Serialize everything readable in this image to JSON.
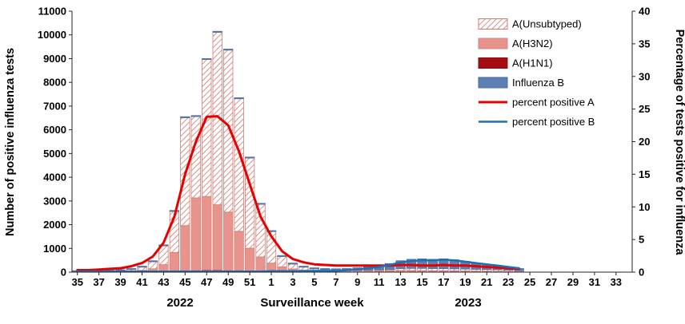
{
  "chart_data": {
    "type": "bar",
    "subtype": "stacked-bars-with-percent-lines",
    "title": "",
    "x_axis": {
      "label": "Surveillance week",
      "year_left": "2022",
      "year_right": "2023",
      "tick_every": 2
    },
    "y_left": {
      "label": "Number of positive influenza tests",
      "min": 0,
      "max": 11000,
      "step": 1000
    },
    "y_right": {
      "label": "Percentage of tests positive for influenza",
      "min": 0,
      "max": 40,
      "step": 5
    },
    "weeks": [
      35,
      36,
      37,
      38,
      39,
      40,
      41,
      42,
      43,
      44,
      45,
      46,
      47,
      48,
      49,
      50,
      51,
      52,
      1,
      2,
      3,
      4,
      5,
      6,
      7,
      8,
      9,
      10,
      11,
      12,
      13,
      14,
      15,
      16,
      17,
      18,
      19,
      20,
      21,
      22,
      23,
      24,
      25,
      26,
      27,
      28,
      29,
      30,
      31,
      32,
      33
    ],
    "series": [
      {
        "key": "a-h1n1",
        "name": "A(H1N1)",
        "fill": "#a40d11",
        "stroke": "#8e0b0e",
        "values": [
          0,
          0,
          0,
          0,
          5,
          5,
          5,
          10,
          15,
          30,
          60,
          80,
          90,
          90,
          80,
          70,
          60,
          40,
          30,
          20,
          15,
          10,
          10,
          10,
          10,
          10,
          10,
          10,
          10,
          10,
          10,
          10,
          10,
          10,
          10,
          10,
          10,
          8,
          8,
          6,
          5,
          5,
          0,
          0,
          0,
          0,
          0,
          0,
          0,
          0,
          0
        ]
      },
      {
        "key": "a-h3n2",
        "name": "A(H3N2)",
        "fill": "#e8938c",
        "stroke": "#d9837c",
        "values": [
          15,
          15,
          18,
          20,
          25,
          40,
          70,
          130,
          300,
          800,
          1900,
          3050,
          3100,
          2750,
          2450,
          1650,
          950,
          600,
          350,
          200,
          120,
          80,
          60,
          50,
          45,
          45,
          50,
          50,
          55,
          55,
          60,
          60,
          55,
          50,
          50,
          45,
          40,
          35,
          30,
          25,
          20,
          15,
          0,
          0,
          0,
          0,
          0,
          0,
          0,
          0,
          0
        ]
      },
      {
        "key": "a-unsubtyped",
        "name": "A(Unsubtyped)",
        "fill": "hatch",
        "stroke": "#cf7d75",
        "hatch_color": "#d4837b",
        "values": [
          10,
          10,
          12,
          20,
          30,
          65,
          135,
          300,
          795,
          1730,
          4550,
          3430,
          5770,
          7270,
          6830,
          5590,
          3800,
          2220,
          1330,
          440,
          205,
          120,
          70,
          50,
          40,
          35,
          30,
          30,
          35,
          45,
          80,
          90,
          95,
          90,
          90,
          85,
          80,
          77,
          72,
          69,
          55,
          40,
          0,
          0,
          0,
          0,
          0,
          0,
          0,
          0,
          0
        ]
      },
      {
        "key": "influenza-b",
        "name": "Influenza B",
        "fill": "#5b80b2",
        "stroke": "#4a6d9e",
        "values": [
          35,
          35,
          40,
          40,
          40,
          40,
          40,
          40,
          40,
          40,
          40,
          40,
          40,
          40,
          40,
          40,
          40,
          40,
          40,
          40,
          40,
          40,
          40,
          40,
          45,
          60,
          90,
          130,
          180,
          250,
          330,
          380,
          400,
          390,
          410,
          380,
          320,
          260,
          210,
          160,
          120,
          90,
          0,
          0,
          0,
          0,
          0,
          0,
          0,
          0,
          0
        ]
      }
    ],
    "lines": [
      {
        "key": "percent-positive-a",
        "name": "percent positive A",
        "color": "#e60000",
        "width": 3,
        "values": [
          0.3,
          0.3,
          0.4,
          0.5,
          0.6,
          0.9,
          1.4,
          2.4,
          4.5,
          8.5,
          15,
          20,
          23.8,
          23.9,
          22.5,
          18.5,
          13.5,
          8.5,
          5.5,
          3.2,
          2,
          1.5,
          1.2,
          1.1,
          1,
          1,
          1,
          1,
          1,
          1,
          1.1,
          1.1,
          1,
          1,
          1.1,
          1,
          1,
          0.9,
          0.8,
          0.7,
          0.6,
          0.5,
          null,
          null,
          null,
          null,
          null,
          null,
          null,
          null,
          null
        ]
      },
      {
        "key": "percent-positive-b",
        "name": "percent positive B",
        "color": "#1f6fb2",
        "width": 2.5,
        "values": [
          0.1,
          0.1,
          0.1,
          0.1,
          0.1,
          0.1,
          0.1,
          0.1,
          0.1,
          0.1,
          0.1,
          0.1,
          0.1,
          0.1,
          0.1,
          0.1,
          0.1,
          0.1,
          0.15,
          0.15,
          0.15,
          0.15,
          0.2,
          0.2,
          0.2,
          0.3,
          0.4,
          0.6,
          0.8,
          1.1,
          1.5,
          1.7,
          1.8,
          1.8,
          1.9,
          1.8,
          1.6,
          1.4,
          1.2,
          1,
          0.8,
          0.6,
          null,
          null,
          null,
          null,
          null,
          null,
          null,
          null,
          null
        ]
      }
    ],
    "legend": [
      {
        "label": "A(Unsubtyped)",
        "swatch": "patch",
        "fill": "hatch",
        "stroke": "#cf7d75"
      },
      {
        "label": "A(H3N2)",
        "swatch": "patch",
        "fill": "#e8938c",
        "stroke": "#d9837c"
      },
      {
        "label": "A(H1N1)",
        "swatch": "patch",
        "fill": "#a40d11",
        "stroke": "#8e0b0e"
      },
      {
        "label": "Influenza B",
        "swatch": "patch",
        "fill": "#5b80b2",
        "stroke": "#4a6d9e"
      },
      {
        "label": "percent positive A",
        "swatch": "line",
        "color": "#e60000",
        "lw": 3
      },
      {
        "label": "percent positive B",
        "swatch": "line",
        "color": "#1f6fb2",
        "lw": 2.5
      }
    ]
  }
}
